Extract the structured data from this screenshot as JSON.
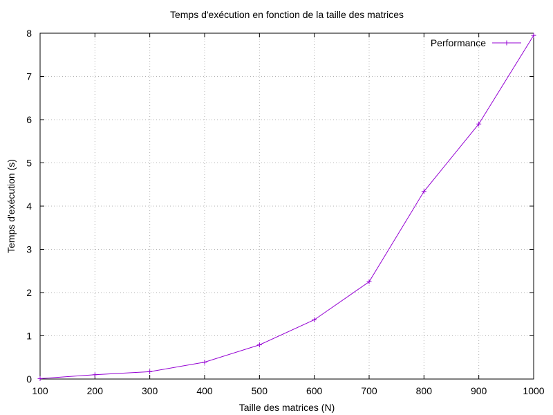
{
  "chart_data": {
    "type": "line",
    "title": "Temps d'exécution en fonction de la taille des matrices",
    "xlabel": "Taille des matrices (N)",
    "ylabel": "Temps d'exécution (s)",
    "xlim": [
      100,
      1000
    ],
    "ylim": [
      0,
      8
    ],
    "xticks": [
      100,
      200,
      300,
      400,
      500,
      600,
      700,
      800,
      900,
      1000
    ],
    "yticks": [
      0,
      1,
      2,
      3,
      4,
      5,
      6,
      7,
      8
    ],
    "grid": true,
    "legend_position": "top-right",
    "series": [
      {
        "name": "Performance",
        "color": "#9400d3",
        "marker": "plus",
        "x": [
          100,
          200,
          300,
          400,
          500,
          600,
          700,
          800,
          900,
          1000
        ],
        "y": [
          0.01,
          0.1,
          0.17,
          0.39,
          0.79,
          1.37,
          2.25,
          4.34,
          5.9,
          7.95
        ]
      }
    ]
  }
}
